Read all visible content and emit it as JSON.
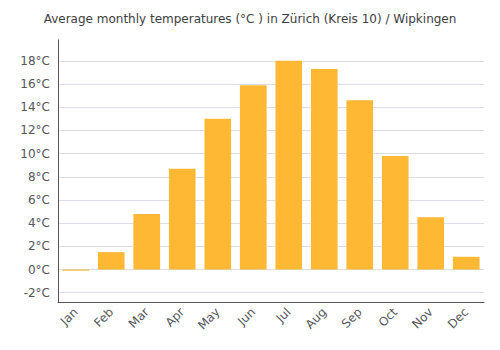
{
  "chart_data": {
    "type": "bar",
    "title": "Average monthly temperatures (°C ) in Zürich (Kreis 10) / Wipkingen",
    "categories": [
      "Jan",
      "Feb",
      "Mar",
      "Apr",
      "May",
      "Jun",
      "Jul",
      "Aug",
      "Sep",
      "Oct",
      "Nov",
      "Dec"
    ],
    "values": [
      -0.1,
      1.5,
      4.8,
      8.7,
      13.0,
      15.9,
      18.0,
      17.3,
      14.6,
      9.8,
      4.5,
      1.1
    ],
    "color": "#FFB833",
    "ylim": [
      -2.8,
      19.8
    ],
    "yticks": [
      {
        "value": -2,
        "label": "-2°C"
      },
      {
        "value": 0,
        "label": "0°C"
      },
      {
        "value": 2,
        "label": "2°C"
      },
      {
        "value": 4,
        "label": "4°C"
      },
      {
        "value": 6,
        "label": "6°C"
      },
      {
        "value": 8,
        "label": "8°C"
      },
      {
        "value": 10,
        "label": "10°C"
      },
      {
        "value": 12,
        "label": "12°C"
      },
      {
        "value": 14,
        "label": "14°C"
      },
      {
        "value": 16,
        "label": "16°C"
      },
      {
        "value": 18,
        "label": "18°C"
      }
    ],
    "grid": true
  }
}
